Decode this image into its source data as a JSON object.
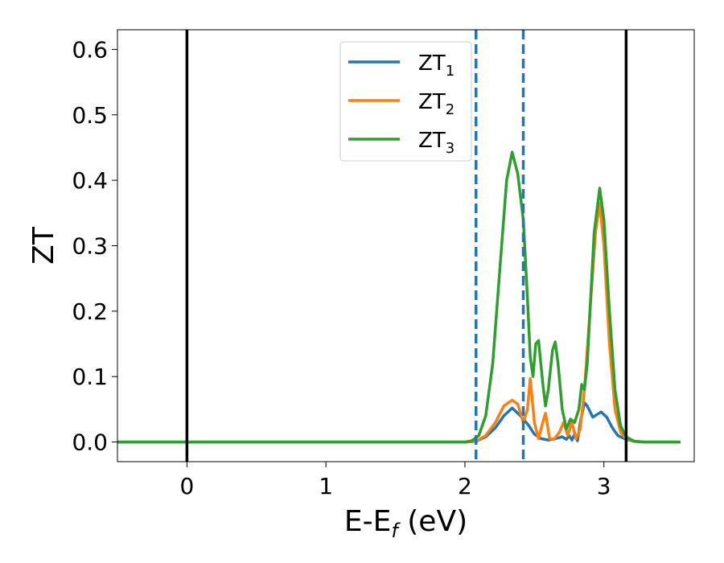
{
  "chart_data": {
    "type": "line",
    "xlabel": "E-E",
    "xlabel_sub": "f",
    "xlabel_unit": " (eV)",
    "ylabel": "ZT",
    "xlim": [
      -0.5,
      3.65
    ],
    "ylim": [
      -0.03,
      0.63
    ],
    "xticks": [
      0,
      1,
      2,
      3
    ],
    "yticks": [
      0.0,
      0.1,
      0.2,
      0.3,
      0.4,
      0.5,
      0.6
    ],
    "ytick_labels": [
      "0.0",
      "0.1",
      "0.2",
      "0.3",
      "0.4",
      "0.5",
      "0.6"
    ],
    "grid": false,
    "legend_position": "upper center",
    "vlines": [
      {
        "x": 0.0,
        "style": "solid",
        "color": "#000000"
      },
      {
        "x": 3.16,
        "style": "solid",
        "color": "#000000"
      },
      {
        "x": 2.08,
        "style": "dashed",
        "color": "#1f77b4"
      },
      {
        "x": 2.42,
        "style": "dashed",
        "color": "#1f77b4"
      }
    ],
    "series": [
      {
        "name": "ZT",
        "name_sub": "1",
        "color": "#1f77b4",
        "x": [
          -0.5,
          2.0,
          2.08,
          2.15,
          2.22,
          2.28,
          2.34,
          2.4,
          2.46,
          2.5,
          2.55,
          2.6,
          2.65,
          2.7,
          2.73,
          2.75,
          2.77,
          2.79,
          2.81,
          2.83,
          2.86,
          2.88,
          2.92,
          2.98,
          3.02,
          3.06,
          3.1,
          3.16,
          3.22,
          3.3,
          3.4,
          3.55
        ],
        "y": [
          0.0,
          0.0,
          0.001,
          0.008,
          0.022,
          0.04,
          0.052,
          0.04,
          0.025,
          0.012,
          0.005,
          0.003,
          0.005,
          0.008,
          0.004,
          0.01,
          0.003,
          0.012,
          0.002,
          0.03,
          0.06,
          0.055,
          0.038,
          0.046,
          0.038,
          0.022,
          0.01,
          0.004,
          0.001,
          0.0,
          0.0,
          0.0
        ]
      },
      {
        "name": "ZT",
        "name_sub": "2",
        "color": "#ff7f0e",
        "x": [
          -0.5,
          2.0,
          2.08,
          2.15,
          2.22,
          2.28,
          2.34,
          2.38,
          2.42,
          2.45,
          2.47,
          2.5,
          2.53,
          2.56,
          2.58,
          2.61,
          2.64,
          2.68,
          2.71,
          2.74,
          2.77,
          2.8,
          2.83,
          2.86,
          2.9,
          2.94,
          2.97,
          3.0,
          3.04,
          3.08,
          3.12,
          3.16,
          3.22,
          3.3,
          3.55
        ],
        "y": [
          0.0,
          0.0,
          0.001,
          0.01,
          0.03,
          0.055,
          0.064,
          0.058,
          0.03,
          0.05,
          0.097,
          0.03,
          0.005,
          0.03,
          0.044,
          0.005,
          0.004,
          0.015,
          0.03,
          0.01,
          0.03,
          0.005,
          0.02,
          0.08,
          0.2,
          0.32,
          0.365,
          0.3,
          0.15,
          0.05,
          0.015,
          0.005,
          0.001,
          0.0,
          0.0
        ]
      },
      {
        "name": "ZT",
        "name_sub": "3",
        "color": "#2ca02c",
        "x": [
          -0.5,
          2.0,
          2.05,
          2.1,
          2.15,
          2.2,
          2.25,
          2.3,
          2.34,
          2.38,
          2.42,
          2.45,
          2.47,
          2.49,
          2.51,
          2.53,
          2.56,
          2.58,
          2.6,
          2.63,
          2.65,
          2.67,
          2.7,
          2.73,
          2.76,
          2.79,
          2.82,
          2.84,
          2.86,
          2.88,
          2.9,
          2.93,
          2.97,
          3.0,
          3.04,
          3.08,
          3.12,
          3.16,
          3.22,
          3.3,
          3.55
        ],
        "y": [
          0.0,
          0.0,
          0.002,
          0.01,
          0.04,
          0.12,
          0.26,
          0.4,
          0.443,
          0.41,
          0.34,
          0.22,
          0.13,
          0.1,
          0.15,
          0.155,
          0.09,
          0.055,
          0.08,
          0.14,
          0.153,
          0.12,
          0.05,
          0.02,
          0.035,
          0.03,
          0.05,
          0.088,
          0.08,
          0.12,
          0.2,
          0.32,
          0.388,
          0.34,
          0.2,
          0.08,
          0.025,
          0.008,
          0.001,
          0.0,
          0.0
        ]
      }
    ]
  }
}
